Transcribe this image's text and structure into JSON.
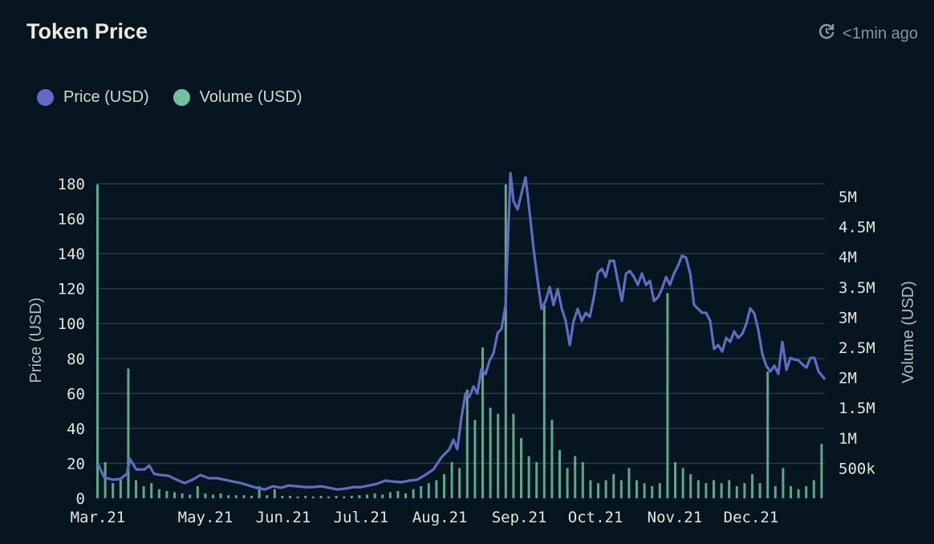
{
  "header": {
    "title": "Token Price",
    "updated": "<1min ago",
    "refresh_icon": "refresh-clock-icon"
  },
  "colors": {
    "price": "#6469c4",
    "volume": "#6fc1a0",
    "grid": "#2b3b45",
    "background": "#06151f"
  },
  "chart_data": {
    "type": "line+bar",
    "title": "Token Price",
    "legend": {
      "placement": "top-left",
      "entries": [
        "Price (USD)",
        "Volume (USD)"
      ]
    },
    "ylabel": "Price (USD)",
    "y2label": "Volume (USD)",
    "ylim": [
      0,
      180
    ],
    "y2lim_k": [
      0,
      5210
    ],
    "xlim_days": [
      0,
      283.75
    ],
    "grid": true,
    "y_ticks": [
      0,
      20,
      40,
      60,
      80,
      100,
      120,
      140,
      160,
      180
    ],
    "y2_ticks": [
      {
        "label": "500k",
        "v": 500
      },
      {
        "label": "1M",
        "v": 1000
      },
      {
        "label": "1.5M",
        "v": 1500
      },
      {
        "label": "2M",
        "v": 2000
      },
      {
        "label": "2.5M",
        "v": 2500
      },
      {
        "label": "3M",
        "v": 3000
      },
      {
        "label": "3.5M",
        "v": 3500
      },
      {
        "label": "4M",
        "v": 4000
      },
      {
        "label": "4.5M",
        "v": 4500
      },
      {
        "label": "5M",
        "v": 5000
      }
    ],
    "x_ticks": [
      {
        "label": "Mar.21",
        "d": 0.6
      },
      {
        "label": "May.21",
        "d": 42.5
      },
      {
        "label": "Jun.21",
        "d": 72.8
      },
      {
        "label": "Jul.21",
        "d": 103.1
      },
      {
        "label": "Aug.21",
        "d": 133.8
      },
      {
        "label": "Sep.21",
        "d": 164.7
      },
      {
        "label": "Oct.21",
        "d": 194.4
      },
      {
        "label": "Nov.21",
        "d": 225.3
      },
      {
        "label": "Dec.21",
        "d": 255
      }
    ],
    "price_series": {
      "name": "Price (USD)",
      "points": [
        [
          0.6,
          19.7
        ],
        [
          3.1,
          12
        ],
        [
          6.3,
          10.6
        ],
        [
          9.4,
          11
        ],
        [
          11.9,
          14
        ],
        [
          13.1,
          22.5
        ],
        [
          15.6,
          16.5
        ],
        [
          18.8,
          16.5
        ],
        [
          20.6,
          18.8
        ],
        [
          22.5,
          14
        ],
        [
          25,
          13.3
        ],
        [
          28.1,
          12.9
        ],
        [
          31.3,
          10.6
        ],
        [
          34.4,
          8.7
        ],
        [
          37.5,
          10.6
        ],
        [
          40.6,
          13.3
        ],
        [
          43.8,
          11.5
        ],
        [
          46.9,
          11.5
        ],
        [
          50,
          10.6
        ],
        [
          53.1,
          9.6
        ],
        [
          56.3,
          8.7
        ],
        [
          59.4,
          7.3
        ],
        [
          62.5,
          6
        ],
        [
          65.6,
          5
        ],
        [
          68.8,
          6.9
        ],
        [
          71.9,
          6
        ],
        [
          75,
          7.3
        ],
        [
          78.1,
          6.9
        ],
        [
          81.3,
          6.4
        ],
        [
          84.4,
          6.4
        ],
        [
          87.5,
          6.9
        ],
        [
          90.6,
          6
        ],
        [
          93.8,
          5
        ],
        [
          96.9,
          5.5
        ],
        [
          100,
          6.4
        ],
        [
          103.1,
          6.4
        ],
        [
          106.3,
          7.3
        ],
        [
          109.4,
          8.3
        ],
        [
          112.5,
          10.1
        ],
        [
          115.6,
          9.6
        ],
        [
          118.8,
          9.2
        ],
        [
          121.9,
          10.1
        ],
        [
          125,
          10.6
        ],
        [
          128.1,
          13.3
        ],
        [
          131.3,
          16.5
        ],
        [
          134.4,
          23.4
        ],
        [
          137.5,
          28
        ],
        [
          139.1,
          33.5
        ],
        [
          140.6,
          28
        ],
        [
          142.2,
          46
        ],
        [
          143.8,
          60
        ],
        [
          145.3,
          58
        ],
        [
          146.9,
          64
        ],
        [
          148.4,
          60
        ],
        [
          150,
          74
        ],
        [
          151.6,
          71
        ],
        [
          153.1,
          78.5
        ],
        [
          154.7,
          83
        ],
        [
          156.3,
          94.6
        ],
        [
          157.8,
          96.9
        ],
        [
          159.4,
          110.6
        ],
        [
          160.3,
          147
        ],
        [
          161.3,
          186
        ],
        [
          162.5,
          170
        ],
        [
          164.1,
          165.3
        ],
        [
          165.6,
          174.5
        ],
        [
          167.2,
          183.7
        ],
        [
          168.8,
          163
        ],
        [
          170.3,
          142.8
        ],
        [
          171.9,
          124.4
        ],
        [
          173.4,
          108.4
        ],
        [
          175,
          113
        ],
        [
          176.6,
          120.8
        ],
        [
          178.1,
          110.6
        ],
        [
          179.7,
          119.8
        ],
        [
          181.3,
          108.4
        ],
        [
          182.8,
          101.5
        ],
        [
          184.4,
          87.7
        ],
        [
          185.9,
          101.5
        ],
        [
          187.5,
          108.4
        ],
        [
          189.1,
          101.5
        ],
        [
          190.6,
          106.1
        ],
        [
          192.2,
          103.8
        ],
        [
          193.8,
          115.2
        ],
        [
          195.3,
          129
        ],
        [
          196.9,
          131.3
        ],
        [
          198.4,
          126.7
        ],
        [
          200,
          135.9
        ],
        [
          201.6,
          135.9
        ],
        [
          203.1,
          124.4
        ],
        [
          204.7,
          112.9
        ],
        [
          206.3,
          128.6
        ],
        [
          207.8,
          130
        ],
        [
          209.4,
          126.7
        ],
        [
          210.9,
          122.1
        ],
        [
          212.5,
          128.6
        ],
        [
          214.1,
          122.1
        ],
        [
          215.6,
          124.4
        ],
        [
          217.2,
          112.9
        ],
        [
          218.8,
          115.2
        ],
        [
          220.3,
          119.8
        ],
        [
          221.9,
          126.7
        ],
        [
          223.4,
          122.1
        ],
        [
          225,
          128.6
        ],
        [
          226.6,
          133.2
        ],
        [
          228.1,
          138.7
        ],
        [
          229.7,
          137.7
        ],
        [
          231.3,
          128.6
        ],
        [
          232.8,
          110.6
        ],
        [
          234.4,
          108.4
        ],
        [
          235.9,
          106.1
        ],
        [
          237.5,
          106.1
        ],
        [
          239.1,
          101.5
        ],
        [
          240.6,
          85.4
        ],
        [
          242.2,
          87.7
        ],
        [
          243.8,
          84
        ],
        [
          245.3,
          91.8
        ],
        [
          246.9,
          89.5
        ],
        [
          248.4,
          95.5
        ],
        [
          250,
          91.8
        ],
        [
          251.6,
          94.1
        ],
        [
          253.1,
          99.6
        ],
        [
          254.7,
          108.7
        ],
        [
          256.3,
          105.6
        ],
        [
          257.8,
          96.4
        ],
        [
          259.4,
          82.6
        ],
        [
          260.9,
          75.8
        ],
        [
          262.5,
          72.5
        ],
        [
          264.1,
          75.8
        ],
        [
          265.6,
          71.2
        ],
        [
          267.2,
          89.5
        ],
        [
          268.8,
          73.5
        ],
        [
          270.3,
          80.3
        ],
        [
          271.9,
          79.4
        ],
        [
          273.4,
          79
        ],
        [
          275,
          76.7
        ],
        [
          276.6,
          74.8
        ],
        [
          278.1,
          80.3
        ],
        [
          279.7,
          80.3
        ],
        [
          281.3,
          72.5
        ],
        [
          283.8,
          68
        ]
      ]
    },
    "volume_series": {
      "name": "Volume (USD)",
      "unit": "k",
      "step_days": 3,
      "values": [
        5200,
        600,
        250,
        300,
        2150,
        300,
        200,
        250,
        150,
        120,
        100,
        80,
        60,
        200,
        80,
        60,
        80,
        50,
        50,
        50,
        40,
        200,
        50,
        150,
        40,
        40,
        30,
        40,
        30,
        40,
        30,
        40,
        30,
        40,
        50,
        60,
        80,
        60,
        100,
        120,
        80,
        150,
        200,
        250,
        300,
        400,
        600,
        500,
        1800,
        1300,
        2500,
        1500,
        1400,
        5200,
        1400,
        1000,
        700,
        600,
        3200,
        1300,
        800,
        500,
        700,
        600,
        300,
        250,
        300,
        400,
        300,
        500,
        300,
        250,
        200,
        250,
        3400,
        600,
        500,
        400,
        300,
        250,
        300,
        250,
        300,
        200,
        250,
        400,
        250,
        2100,
        200,
        500,
        200,
        150,
        200,
        300,
        900
      ]
    }
  }
}
